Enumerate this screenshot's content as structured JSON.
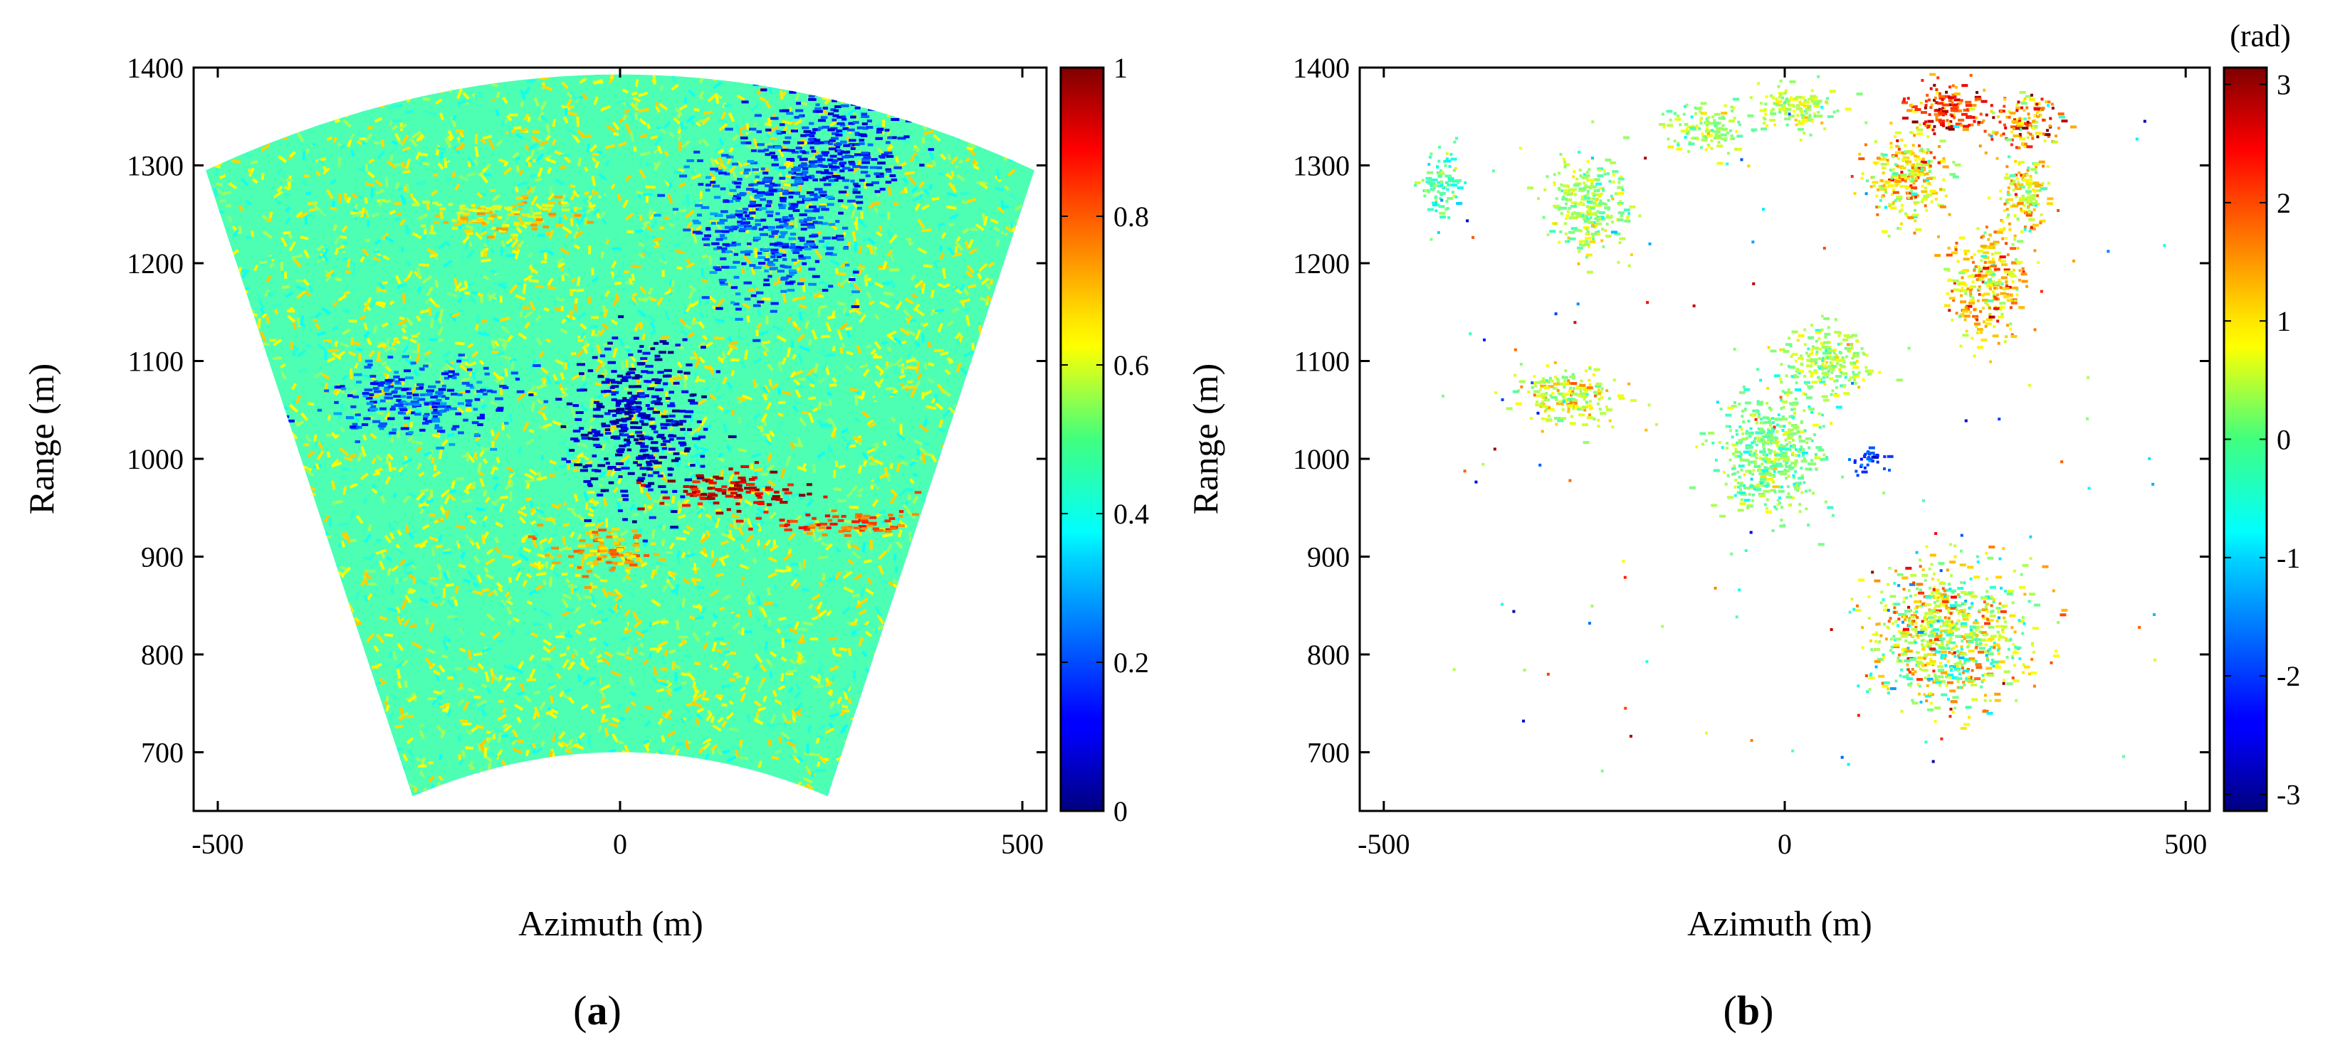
{
  "chart_data": [
    {
      "type": "heatmap",
      "panel_label": {
        "open": "(",
        "letter": "a",
        "close": ")"
      },
      "xlabel": "Azimuth (m)",
      "ylabel": "Range (m)",
      "xlim": [
        -530,
        530
      ],
      "ylim": [
        640,
        1400
      ],
      "xticks": [
        -500,
        0,
        500
      ],
      "yticks": [
        700,
        800,
        900,
        1000,
        1100,
        1200,
        1300,
        1400
      ],
      "grid": false,
      "footprint": {
        "description_shape": "sector",
        "near_range_corners": [
          [
            -258,
            655
          ],
          [
            258,
            655
          ]
        ],
        "far_range_corners": [
          [
            -515,
            1295
          ],
          [
            515,
            1295
          ]
        ],
        "near_range_mid": [
          0,
          700
        ],
        "far_range_mid": [
          0,
          1393
        ]
      },
      "background_value": 0.45,
      "features": [
        {
          "value": 0.08,
          "center": [
            20,
            1035
          ],
          "extent": [
            80,
            80
          ]
        },
        {
          "value": 0.15,
          "center": [
            260,
            1320
          ],
          "extent": [
            90,
            60
          ]
        },
        {
          "value": 0.2,
          "center": [
            180,
            1240
          ],
          "extent": [
            90,
            80
          ]
        },
        {
          "value": 0.2,
          "center": [
            -250,
            1060
          ],
          "extent": [
            120,
            35
          ]
        },
        {
          "value": 0.92,
          "center": [
            130,
            970
          ],
          "extent": [
            90,
            20
          ]
        },
        {
          "value": 0.8,
          "center": [
            280,
            935
          ],
          "extent": [
            90,
            15
          ]
        },
        {
          "value": 0.72,
          "center": [
            -30,
            905
          ],
          "extent": [
            70,
            25
          ]
        },
        {
          "value": 0.65,
          "center": [
            -150,
            1250
          ],
          "extent": [
            90,
            20
          ]
        }
      ],
      "colorbar": {
        "colormap": "jet",
        "range": [
          0,
          1
        ],
        "ticks": [
          0,
          0.2,
          0.4,
          0.6,
          0.8,
          1
        ],
        "tick_labels": [
          "0",
          "0.2",
          "0.4",
          "0.6",
          "0.8",
          "1"
        ],
        "unit": ""
      }
    },
    {
      "type": "scatter",
      "panel_label": {
        "open": "(",
        "letter": "b",
        "close": ")"
      },
      "xlabel": "Azimuth (m)",
      "ylabel": "Range (m)",
      "xlim": [
        -530,
        530
      ],
      "ylim": [
        640,
        1400
      ],
      "xticks": [
        -500,
        0,
        500
      ],
      "yticks": [
        700,
        800,
        900,
        1000,
        1100,
        1200,
        1300,
        1400
      ],
      "grid": false,
      "clusters": [
        {
          "center": [
            -20,
            1010
          ],
          "spread": [
            55,
            55
          ],
          "value_mean": 0.0,
          "value_spread": 0.4
        },
        {
          "center": [
            50,
            1100
          ],
          "spread": [
            45,
            30
          ],
          "value_mean": 0.3,
          "value_spread": 0.4
        },
        {
          "center": [
            100,
            1000
          ],
          "spread": [
            20,
            10
          ],
          "value_mean": -2.0,
          "value_spread": 0.4
        },
        {
          "center": [
            -270,
            1065
          ],
          "spread": [
            50,
            25
          ],
          "value_mean": 0.6,
          "value_spread": 0.5
        },
        {
          "center": [
            200,
            1360
          ],
          "spread": [
            45,
            20
          ],
          "value_mean": 2.0,
          "value_spread": 0.6
        },
        {
          "center": [
            300,
            1345
          ],
          "spread": [
            40,
            20
          ],
          "value_mean": 1.5,
          "value_spread": 0.8
        },
        {
          "center": [
            150,
            1290
          ],
          "spread": [
            40,
            40
          ],
          "value_mean": 0.8,
          "value_spread": 0.6
        },
        {
          "center": [
            250,
            1180
          ],
          "spread": [
            40,
            45
          ],
          "value_mean": 1.0,
          "value_spread": 0.6
        },
        {
          "center": [
            300,
            1270
          ],
          "spread": [
            25,
            35
          ],
          "value_mean": 0.8,
          "value_spread": 0.6
        },
        {
          "center": [
            -430,
            1280
          ],
          "spread": [
            20,
            30
          ],
          "value_mean": -0.3,
          "value_spread": 0.4
        },
        {
          "center": [
            -250,
            1260
          ],
          "spread": [
            40,
            40
          ],
          "value_mean": 0.2,
          "value_spread": 0.4
        },
        {
          "center": [
            -100,
            1340
          ],
          "spread": [
            40,
            20
          ],
          "value_mean": 0.2,
          "value_spread": 0.4
        },
        {
          "center": [
            10,
            1360
          ],
          "spread": [
            40,
            20
          ],
          "value_mean": 0.4,
          "value_spread": 0.4
        },
        {
          "center": [
            200,
            820
          ],
          "spread": [
            80,
            60
          ],
          "value_mean": 0.5,
          "value_spread": 0.8
        }
      ],
      "sparse_points": 110,
      "colorbar": {
        "colormap": "jet",
        "range": [
          -3.14159,
          3.14159
        ],
        "ticks": [
          -3,
          -2,
          -1,
          0,
          1,
          2,
          3
        ],
        "tick_labels": [
          "-3",
          "-2",
          "-1",
          "0",
          "1",
          "2",
          "3"
        ],
        "unit": "(rad)"
      }
    }
  ]
}
